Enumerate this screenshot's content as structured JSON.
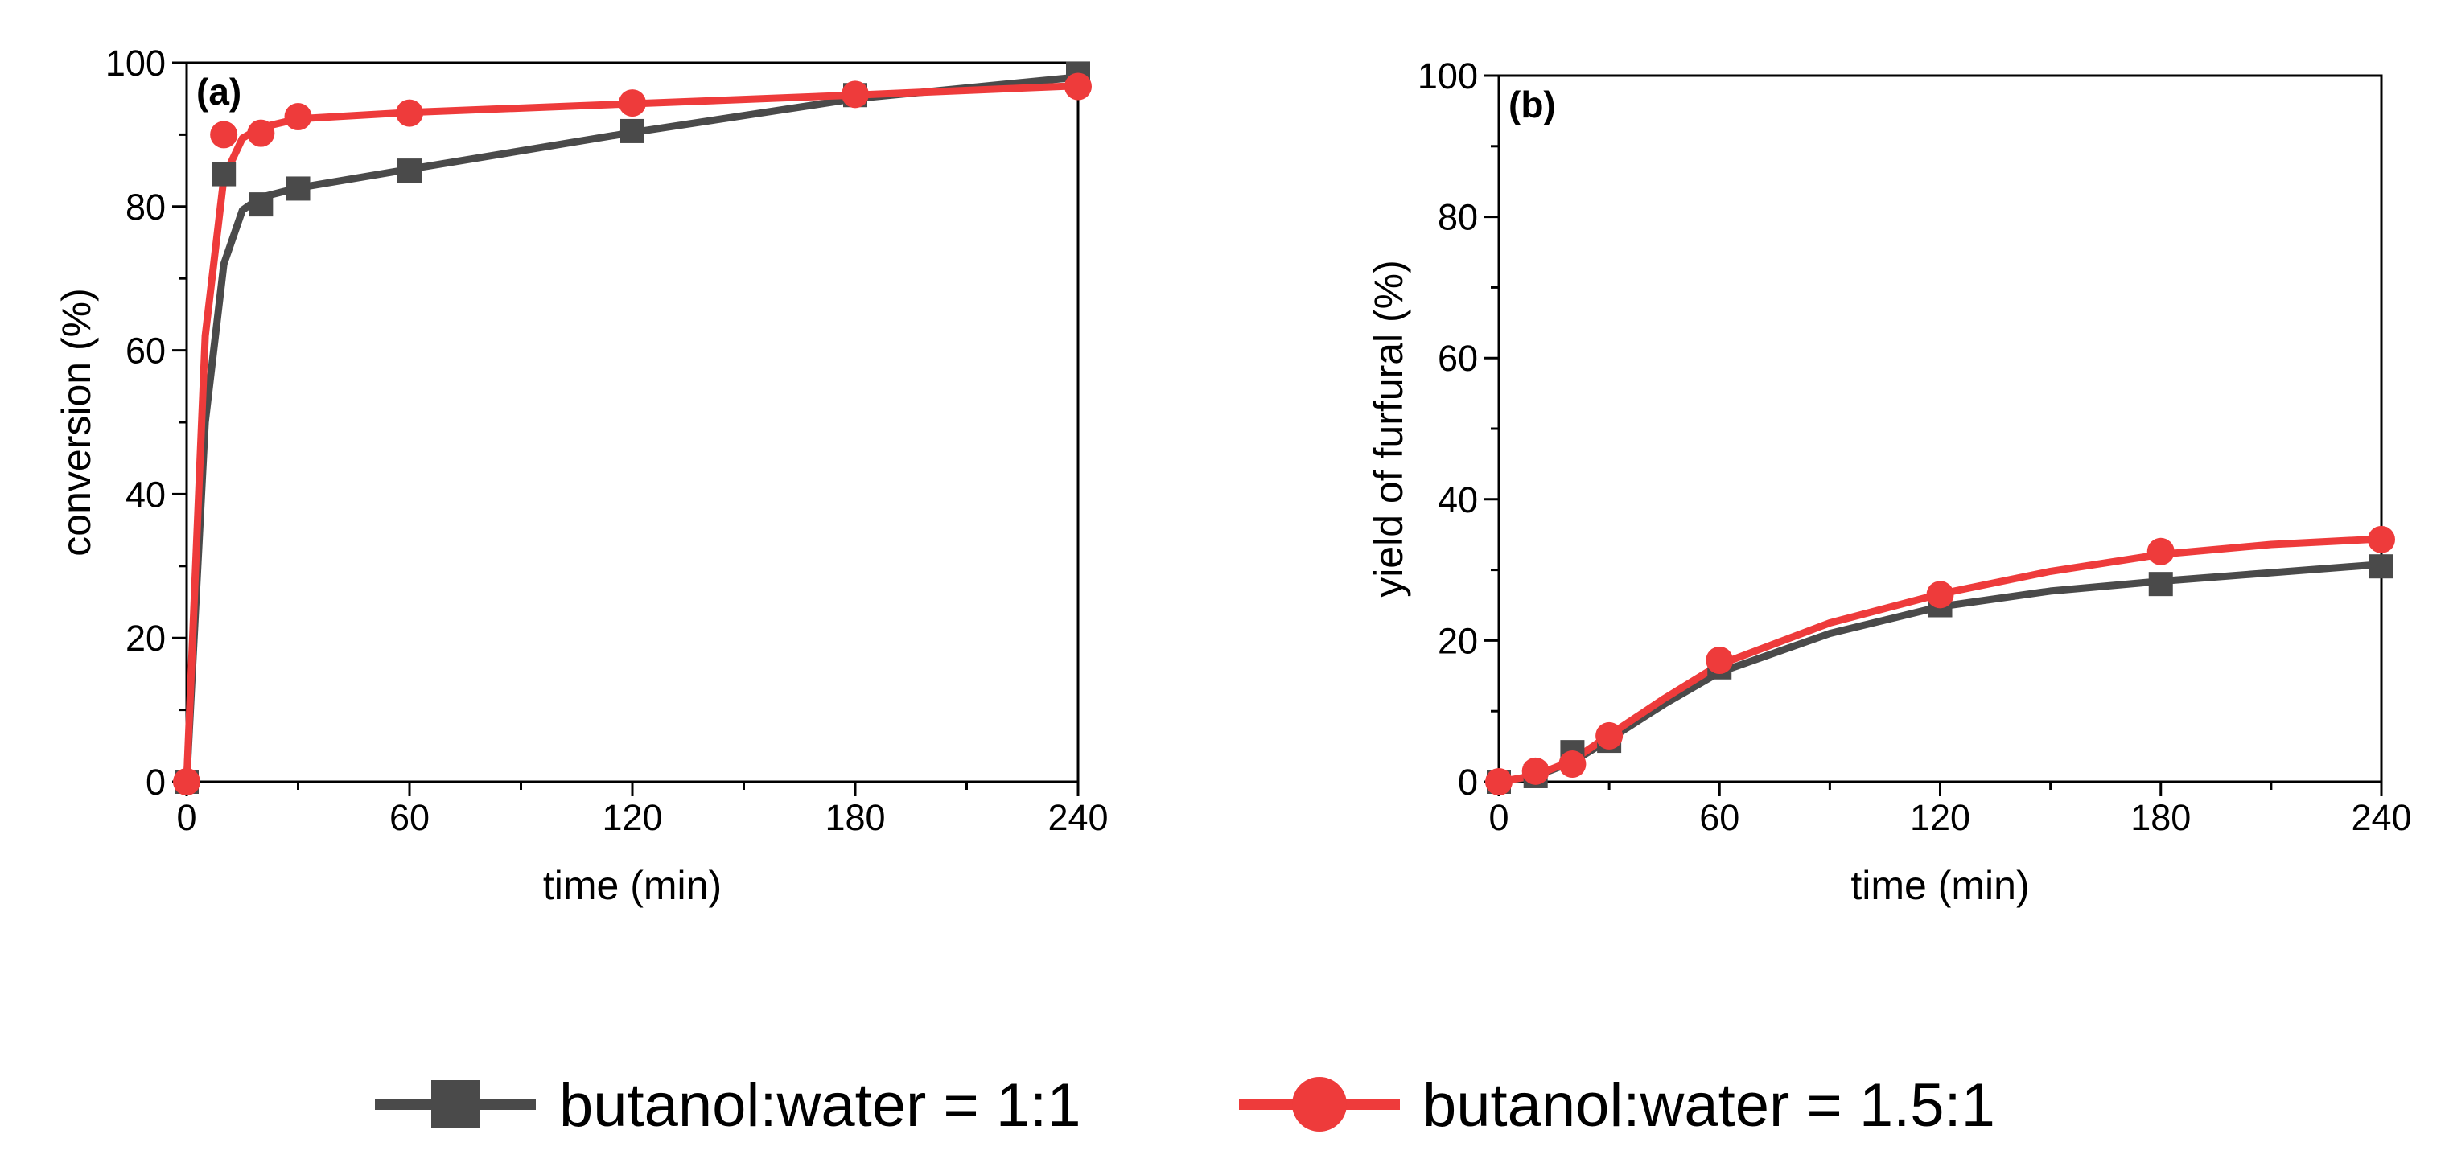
{
  "chart_data": [
    {
      "type": "line",
      "panel_label": "(a)",
      "xlabel": "time (min)",
      "ylabel": "conversion (%)",
      "xlim": [
        0,
        240
      ],
      "ylim": [
        0,
        100
      ],
      "xticks": [
        0,
        60,
        120,
        180,
        240
      ],
      "yticks": [
        0,
        20,
        40,
        60,
        80,
        100
      ],
      "series": [
        {
          "name": "butanol:water = 1:1",
          "color": "#4a4a4a",
          "marker": "square",
          "x": [
            0,
            10,
            20,
            30,
            60,
            120,
            180,
            240
          ],
          "y": [
            0,
            84.5,
            80.3,
            82.5,
            85.0,
            90.5,
            95.5,
            98.5
          ],
          "fit": [
            [
              0,
              0
            ],
            [
              5,
              50
            ],
            [
              10,
              72
            ],
            [
              15,
              79.5
            ],
            [
              20,
              81.3
            ],
            [
              30,
              82.6
            ],
            [
              60,
              85.2
            ],
            [
              120,
              90.3
            ],
            [
              180,
              95.0
            ],
            [
              240,
              98.0
            ]
          ]
        },
        {
          "name": "butanol:water = 1.5:1",
          "color": "#ee3b3b",
          "marker": "circle",
          "x": [
            0,
            10,
            20,
            30,
            60,
            120,
            180,
            240
          ],
          "y": [
            0,
            90.0,
            90.2,
            92.5,
            93.0,
            94.4,
            95.6,
            96.7
          ],
          "fit": [
            [
              0,
              0
            ],
            [
              5,
              62
            ],
            [
              10,
              84
            ],
            [
              15,
              89.5
            ],
            [
              20,
              91.0
            ],
            [
              30,
              92.2
            ],
            [
              60,
              93.1
            ],
            [
              120,
              94.3
            ],
            [
              180,
              95.5
            ],
            [
              240,
              96.8
            ]
          ]
        }
      ]
    },
    {
      "type": "line",
      "panel_label": "(b)",
      "xlabel": "time (min)",
      "ylabel": "yield of furfural (%)",
      "xlim": [
        0,
        240
      ],
      "ylim": [
        0,
        100
      ],
      "xticks": [
        0,
        60,
        120,
        180,
        240
      ],
      "yticks": [
        0,
        20,
        40,
        60,
        80,
        100
      ],
      "series": [
        {
          "name": "butanol:water = 1:1",
          "color": "#4a4a4a",
          "marker": "square",
          "x": [
            0,
            10,
            20,
            30,
            60,
            120,
            180,
            240
          ],
          "y": [
            0,
            0.8,
            4.2,
            5.8,
            16.2,
            25.0,
            28.0,
            30.5
          ],
          "fit": [
            [
              0,
              0
            ],
            [
              10,
              0.8
            ],
            [
              20,
              2.8
            ],
            [
              30,
              6.0
            ],
            [
              45,
              11.0
            ],
            [
              60,
              15.5
            ],
            [
              90,
              21.0
            ],
            [
              120,
              24.8
            ],
            [
              150,
              27.0
            ],
            [
              180,
              28.4
            ],
            [
              210,
              29.6
            ],
            [
              240,
              30.8
            ]
          ]
        },
        {
          "name": "butanol:water = 1.5:1",
          "color": "#ee3b3b",
          "marker": "circle",
          "x": [
            0,
            10,
            20,
            30,
            60,
            120,
            180,
            240
          ],
          "y": [
            0,
            1.5,
            2.5,
            6.5,
            17.2,
            26.5,
            32.6,
            34.3
          ],
          "fit": [
            [
              0,
              0
            ],
            [
              10,
              0.9
            ],
            [
              20,
              3.0
            ],
            [
              30,
              6.6
            ],
            [
              45,
              11.8
            ],
            [
              60,
              16.6
            ],
            [
              90,
              22.5
            ],
            [
              120,
              26.6
            ],
            [
              150,
              29.8
            ],
            [
              180,
              32.2
            ],
            [
              210,
              33.6
            ],
            [
              240,
              34.4
            ]
          ]
        }
      ]
    }
  ],
  "legend": {
    "placement": "bottom",
    "items": [
      {
        "label": "butanol:water = 1:1",
        "color": "#4a4a4a",
        "marker": "square"
      },
      {
        "label": "butanol:water = 1.5:1",
        "color": "#ee3b3b",
        "marker": "circle"
      }
    ]
  }
}
